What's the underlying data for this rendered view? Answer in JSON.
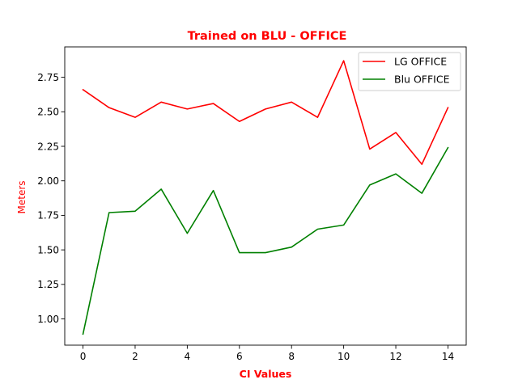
{
  "chart_data": {
    "type": "line",
    "title": "Trained on BLU - OFFICE",
    "xlabel": "CI Values",
    "ylabel": "Meters",
    "x": [
      0,
      1,
      2,
      3,
      4,
      5,
      6,
      7,
      8,
      9,
      10,
      11,
      12,
      13,
      14
    ],
    "xlim": [
      -0.7,
      14.7
    ],
    "ylim": [
      0.81,
      2.97
    ],
    "xticks": [
      0,
      2,
      4,
      6,
      8,
      10,
      12,
      14
    ],
    "yticks": [
      1.0,
      1.25,
      1.5,
      1.75,
      2.0,
      2.25,
      2.5,
      2.75
    ],
    "ytick_labels": [
      "1.00",
      "1.25",
      "1.50",
      "1.75",
      "2.00",
      "2.25",
      "2.50",
      "2.75"
    ],
    "grid": false,
    "legend_position": "top-right",
    "series": [
      {
        "name": "LG OFFICE",
        "color": "#ff0000",
        "values": [
          2.66,
          2.53,
          2.46,
          2.57,
          2.52,
          2.56,
          2.43,
          2.52,
          2.57,
          2.46,
          2.87,
          2.23,
          2.35,
          2.12,
          2.53
        ]
      },
      {
        "name": "Blu OFFICE",
        "color": "#008000",
        "values": [
          0.89,
          1.77,
          1.78,
          1.94,
          1.62,
          1.93,
          1.48,
          1.48,
          1.52,
          1.65,
          1.68,
          1.97,
          2.05,
          1.91,
          2.24
        ]
      }
    ]
  }
}
